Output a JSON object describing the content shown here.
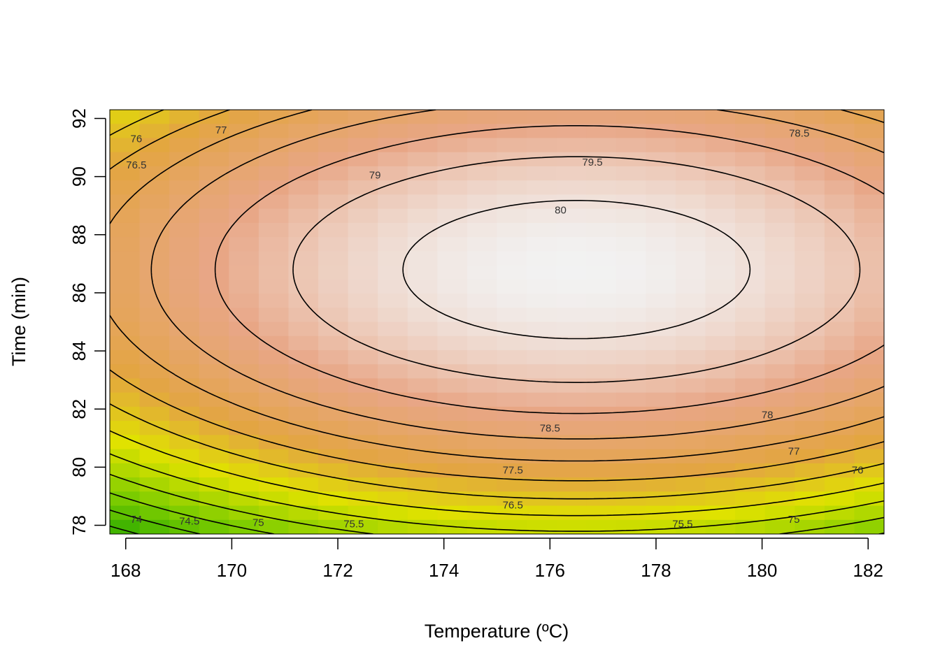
{
  "chart_data": {
    "type": "heatmap",
    "subtype": "contour-with-image",
    "title": "",
    "xlabel": "Temperature (ºC)",
    "ylabel": "Time (min)",
    "xlim": [
      167.7,
      182.3
    ],
    "ylim": [
      77.7,
      92.3
    ],
    "x_ticks": [
      168,
      170,
      172,
      174,
      176,
      178,
      180,
      182
    ],
    "y_ticks": [
      78,
      80,
      82,
      84,
      86,
      88,
      90,
      92
    ],
    "grid": false,
    "legend": "none",
    "surface": {
      "maximum_value": 80.3,
      "maximum_at": {
        "x": 176.5,
        "y": 86.8
      },
      "description": "quadratic response surface"
    },
    "contour_levels": [
      74,
      74.5,
      75,
      75.5,
      76,
      76.5,
      77,
      77.5,
      78,
      78.5,
      79,
      79.5,
      80
    ],
    "contour_labels": [
      {
        "text": "74",
        "x": 168.2,
        "y": 78.2
      },
      {
        "text": "74.5",
        "x": 169.2,
        "y": 78.15
      },
      {
        "text": "75",
        "x": 170.5,
        "y": 78.1
      },
      {
        "text": "75.5",
        "x": 172.3,
        "y": 78.05
      },
      {
        "text": "75.5",
        "x": 178.5,
        "y": 78.05
      },
      {
        "text": "75",
        "x": 180.6,
        "y": 78.2
      },
      {
        "text": "76",
        "x": 168.2,
        "y": 91.3
      },
      {
        "text": "76.5",
        "x": 168.2,
        "y": 90.4
      },
      {
        "text": "77",
        "x": 169.8,
        "y": 91.6
      },
      {
        "text": "79",
        "x": 172.7,
        "y": 90.05
      },
      {
        "text": "79.5",
        "x": 176.8,
        "y": 90.5
      },
      {
        "text": "80",
        "x": 176.2,
        "y": 88.85
      },
      {
        "text": "78.5",
        "x": 176.0,
        "y": 81.35
      },
      {
        "text": "78",
        "x": 180.1,
        "y": 81.8
      },
      {
        "text": "77.5",
        "x": 175.3,
        "y": 79.9
      },
      {
        "text": "77",
        "x": 180.6,
        "y": 80.55
      },
      {
        "text": "76.5",
        "x": 175.3,
        "y": 78.7
      },
      {
        "text": "76",
        "x": 181.8,
        "y": 79.9
      },
      {
        "text": "78.5",
        "x": 180.7,
        "y": 91.5
      }
    ],
    "colors": {
      "low": "#1aa300",
      "mid_green": "#7ccc00",
      "yellow": "#e0e200",
      "orange": "#e3a541",
      "salmon": "#e8a686",
      "high": "#f2f2f2"
    }
  }
}
